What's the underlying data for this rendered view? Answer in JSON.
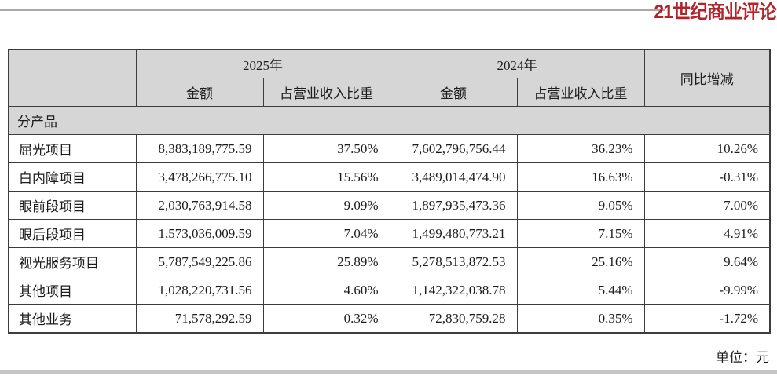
{
  "brand": {
    "logo_text": "21世纪商业评论",
    "logo_color": "#b3232a"
  },
  "table": {
    "header": {
      "year_2025": "2025年",
      "year_2024": "2024年",
      "col_amount": "金额",
      "col_ratio": "占营业收入比重",
      "col_yoy": "同比增减"
    },
    "section_label": "分产品",
    "rows": [
      {
        "label": "屈光项目",
        "amount_2025": "8,383,189,775.59",
        "ratio_2025": "37.50%",
        "amount_2024": "7,602,796,756.44",
        "ratio_2024": "36.23%",
        "yoy": "10.26%"
      },
      {
        "label": "白内障项目",
        "amount_2025": "3,478,266,775.10",
        "ratio_2025": "15.56%",
        "amount_2024": "3,489,014,474.90",
        "ratio_2024": "16.63%",
        "yoy": "-0.31%"
      },
      {
        "label": "眼前段项目",
        "amount_2025": "2,030,763,914.58",
        "ratio_2025": "9.09%",
        "amount_2024": "1,897,935,473.36",
        "ratio_2024": "9.05%",
        "yoy": "7.00%"
      },
      {
        "label": "眼后段项目",
        "amount_2025": "1,573,036,009.59",
        "ratio_2025": "7.04%",
        "amount_2024": "1,499,480,773.21",
        "ratio_2024": "7.15%",
        "yoy": "4.91%"
      },
      {
        "label": "视光服务项目",
        "amount_2025": "5,787,549,225.86",
        "ratio_2025": "25.89%",
        "amount_2024": "5,278,513,872.53",
        "ratio_2024": "25.16%",
        "yoy": "9.64%"
      },
      {
        "label": "其他项目",
        "amount_2025": "1,028,220,731.56",
        "ratio_2025": "4.60%",
        "amount_2024": "1,142,322,038.78",
        "ratio_2024": "5.44%",
        "yoy": "-9.99%"
      },
      {
        "label": "其他业务",
        "amount_2025": "71,578,292.59",
        "ratio_2025": "0.32%",
        "amount_2024": "72,830,759.28",
        "ratio_2024": "0.35%",
        "yoy": "-1.72%"
      }
    ]
  },
  "unit_note": "单位：元",
  "colors": {
    "header_bg": "#d6d6d6",
    "border": "#3c3c3c",
    "top_rule": "#a9a9a9",
    "bottom_bar": "#c6c6c6"
  }
}
